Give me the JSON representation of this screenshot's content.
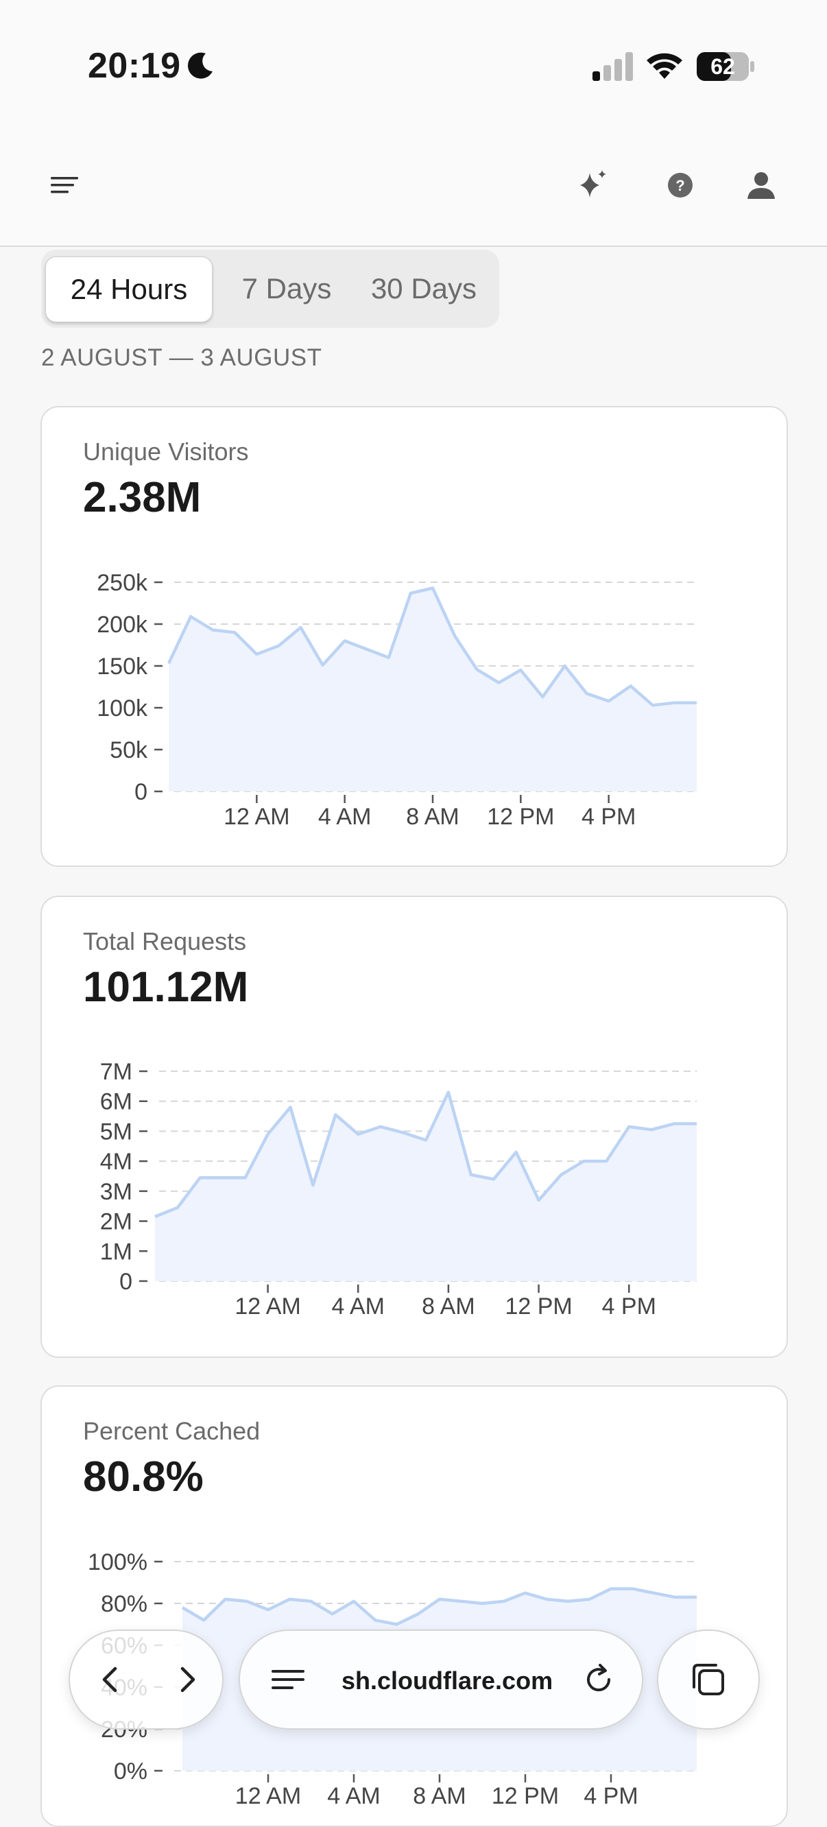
{
  "status_bar": {
    "time": "20:19",
    "battery": "62"
  },
  "header": {
    "menu_icon": "menu-icon",
    "ai_icon": "sparkle-icon",
    "help_icon": "help-circle-icon",
    "profile_icon": "user-icon"
  },
  "time_range": {
    "tabs": [
      "24 Hours",
      "7 Days",
      "30 Days"
    ],
    "selected": "24 Hours",
    "date_range": "2 AUGUST — 3 AUGUST"
  },
  "colors": {
    "line": "#bcd3f3",
    "fill": "#eef3fd",
    "grid": "#d6d6d6"
  },
  "cards": [
    {
      "label": "Unique Visitors",
      "value": "2.38M"
    },
    {
      "label": "Total Requests",
      "value": "101.12M"
    },
    {
      "label": "Percent Cached",
      "value": "80.8%"
    }
  ],
  "chart_data": [
    {
      "type": "area",
      "title": "Unique Visitors",
      "y_ticks": [
        "0",
        "50k",
        "100k",
        "150k",
        "200k",
        "250k"
      ],
      "ylim": [
        0,
        250000
      ],
      "x_ticks": [
        "12 AM",
        "4 AM",
        "8 AM",
        "12 PM",
        "4 PM"
      ],
      "x": [
        20,
        21,
        22,
        23,
        24,
        25,
        26,
        27,
        28,
        29,
        30,
        31,
        32,
        33,
        34,
        35,
        36,
        37,
        38,
        39,
        40,
        41,
        42,
        43,
        44
      ],
      "values": [
        153000,
        209000,
        193000,
        190000,
        164000,
        174000,
        196000,
        151000,
        180000,
        170000,
        160000,
        237000,
        243000,
        186000,
        146000,
        130000,
        145000,
        113000,
        150000,
        117000,
        108000,
        126000,
        103000,
        106000,
        106000
      ],
      "grid": true
    },
    {
      "type": "area",
      "title": "Total Requests",
      "y_ticks": [
        "0",
        "1M",
        "2M",
        "3M",
        "4M",
        "5M",
        "6M",
        "7M"
      ],
      "ylim": [
        0,
        7000000
      ],
      "x_ticks": [
        "12 AM",
        "4 AM",
        "8 AM",
        "12 PM",
        "4 PM"
      ],
      "x": [
        19,
        20,
        21,
        22,
        23,
        24,
        25,
        26,
        27,
        28,
        29,
        30,
        31,
        32,
        33,
        34,
        35,
        36,
        37,
        38,
        39,
        40,
        41,
        42,
        43
      ],
      "values": [
        2150000,
        2450000,
        3450000,
        3450000,
        3450000,
        4900000,
        5800000,
        3200000,
        5550000,
        4900000,
        5150000,
        4950000,
        4700000,
        6300000,
        3550000,
        3400000,
        4300000,
        2700000,
        3550000,
        4000000,
        4000000,
        5150000,
        5050000,
        5250000,
        5250000
      ],
      "grid": true
    },
    {
      "type": "area",
      "title": "Percent Cached",
      "y_ticks": [
        "0%",
        "20%",
        "40%",
        "60%",
        "80%",
        "100%"
      ],
      "ylim": [
        0,
        100
      ],
      "x_ticks": [
        "12 AM",
        "4 AM",
        "8 AM",
        "12 PM",
        "4 PM"
      ],
      "x": [
        20,
        21,
        22,
        23,
        24,
        25,
        26,
        27,
        28,
        29,
        30,
        31,
        32,
        33,
        34,
        35,
        36,
        37,
        38,
        39,
        40,
        41,
        42,
        43,
        44
      ],
      "values": [
        78,
        72,
        82,
        81,
        77,
        82,
        81,
        75,
        81,
        72,
        70,
        75,
        82,
        81,
        80,
        81,
        85,
        82,
        81,
        82,
        87,
        87,
        85,
        83,
        83
      ],
      "grid": true
    }
  ],
  "browser": {
    "url": "sh.cloudflare.com",
    "back_icon": "chevron-left-icon",
    "forward_icon": "chevron-right-icon",
    "menu_icon": "lines-icon",
    "reload_icon": "reload-icon",
    "tabs_icon": "tabs-icon"
  }
}
